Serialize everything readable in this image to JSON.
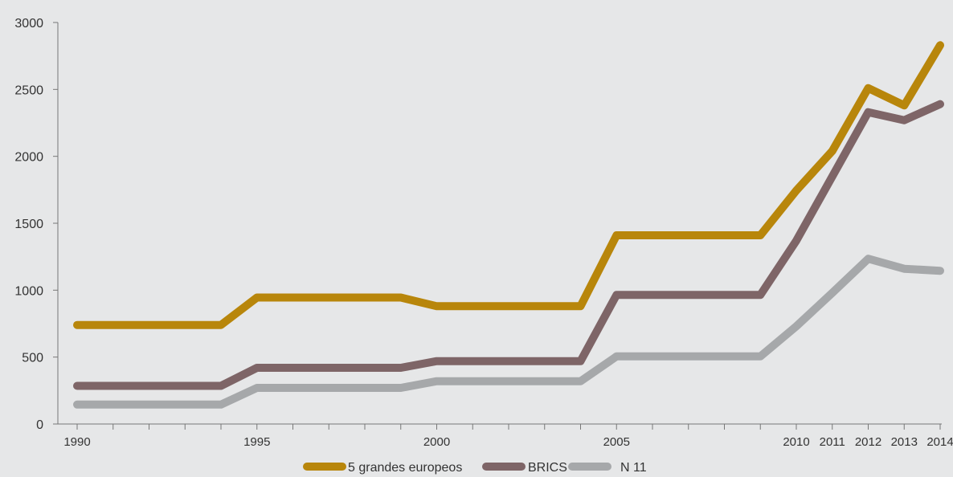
{
  "chart_data": {
    "type": "line",
    "title": "",
    "xlabel": "",
    "ylabel": "",
    "x": [
      1990,
      1991,
      1992,
      1993,
      1994,
      1995,
      1996,
      1997,
      1998,
      1999,
      2000,
      2001,
      2002,
      2003,
      2004,
      2005,
      2006,
      2007,
      2008,
      2009,
      2010,
      2011,
      2012,
      2013,
      2014
    ],
    "x_tick_labels": [
      "1990",
      "1995",
      "2000",
      "2005",
      "2010",
      "2011",
      "2012",
      "2013",
      "2014"
    ],
    "x_tick_values": [
      1990,
      1995,
      2000,
      2005,
      2010,
      2011,
      2012,
      2013,
      2014
    ],
    "ylim": [
      0,
      3000
    ],
    "y_ticks": [
      0,
      500,
      1000,
      1500,
      2000,
      2500,
      3000
    ],
    "grid": false,
    "legend_position": "bottom",
    "series": [
      {
        "name": "5 grandes europeos",
        "color": "#b8860b",
        "values": [
          740,
          740,
          740,
          740,
          740,
          945,
          945,
          945,
          945,
          945,
          880,
          880,
          880,
          880,
          880,
          1410,
          1410,
          1410,
          1410,
          1410,
          1745,
          2040,
          2510,
          2380,
          2830
        ]
      },
      {
        "name": "BRICS",
        "color": "#7e6567",
        "values": [
          285,
          285,
          285,
          285,
          285,
          420,
          420,
          420,
          420,
          420,
          470,
          470,
          470,
          470,
          470,
          965,
          965,
          965,
          965,
          965,
          1370,
          1850,
          2330,
          2270,
          2390
        ]
      },
      {
        "name": "N 11",
        "color": "#a6a8aa",
        "values": [
          145,
          145,
          145,
          145,
          145,
          270,
          270,
          270,
          270,
          270,
          320,
          320,
          320,
          320,
          320,
          505,
          505,
          505,
          505,
          505,
          730,
          980,
          1235,
          1160,
          1145
        ]
      }
    ]
  }
}
